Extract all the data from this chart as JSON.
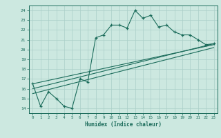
{
  "xlabel": "Humidex (Indice chaleur)",
  "ylabel": "",
  "bg_color": "#cce8e0",
  "line_color": "#1a6b5a",
  "grid_color": "#aacfc8",
  "xlim": [
    -0.5,
    23.5
  ],
  "ylim": [
    13.5,
    24.5
  ],
  "xticks": [
    0,
    1,
    2,
    3,
    4,
    5,
    6,
    7,
    8,
    9,
    10,
    11,
    12,
    13,
    14,
    15,
    16,
    17,
    18,
    19,
    20,
    21,
    22,
    23
  ],
  "yticks": [
    14,
    15,
    16,
    17,
    18,
    19,
    20,
    21,
    22,
    23,
    24
  ],
  "curve1_x": [
    0,
    1,
    2,
    3,
    4,
    5,
    6,
    7,
    8,
    9,
    10,
    11,
    12,
    13,
    14,
    15,
    16,
    17,
    18,
    19,
    20,
    21,
    22,
    23
  ],
  "curve1_y": [
    16.5,
    14.2,
    15.7,
    15.0,
    14.2,
    14.0,
    17.0,
    16.7,
    21.2,
    21.5,
    22.5,
    22.5,
    22.2,
    24.0,
    23.2,
    23.5,
    22.3,
    22.5,
    21.8,
    21.5,
    21.5,
    21.0,
    20.5,
    20.6
  ],
  "curve2_x": [
    0,
    23
  ],
  "curve2_y": [
    16.5,
    20.5
  ],
  "curve3_x": [
    0,
    23
  ],
  "curve3_y": [
    16.0,
    20.6
  ],
  "curve4_x": [
    0,
    23
  ],
  "curve4_y": [
    15.5,
    20.2
  ]
}
